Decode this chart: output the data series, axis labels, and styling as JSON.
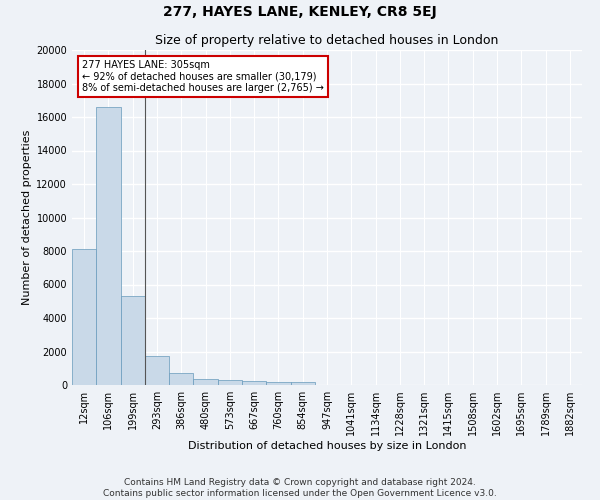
{
  "title": "277, HAYES LANE, KENLEY, CR8 5EJ",
  "subtitle": "Size of property relative to detached houses in London",
  "xlabel": "Distribution of detached houses by size in London",
  "ylabel": "Number of detached properties",
  "bar_color": "#c9d9e8",
  "bar_edge_color": "#6699bb",
  "annotation_box_color": "#ffffff",
  "annotation_box_edge": "#cc0000",
  "vline_color": "#555555",
  "categories": [
    "12sqm",
    "106sqm",
    "199sqm",
    "293sqm",
    "386sqm",
    "480sqm",
    "573sqm",
    "667sqm",
    "760sqm",
    "854sqm",
    "947sqm",
    "1041sqm",
    "1134sqm",
    "1228sqm",
    "1321sqm",
    "1415sqm",
    "1508sqm",
    "1602sqm",
    "1695sqm",
    "1789sqm",
    "1882sqm"
  ],
  "values": [
    8100,
    16600,
    5300,
    1750,
    730,
    380,
    290,
    220,
    190,
    170,
    0,
    0,
    0,
    0,
    0,
    0,
    0,
    0,
    0,
    0,
    0
  ],
  "ylim": [
    0,
    20000
  ],
  "yticks": [
    0,
    2000,
    4000,
    6000,
    8000,
    10000,
    12000,
    14000,
    16000,
    18000,
    20000
  ],
  "property_size": "305sqm",
  "property_name": "277 HAYES LANE",
  "pct_smaller": "92%",
  "n_smaller": "30,179",
  "pct_larger": "8%",
  "n_larger": "2,765",
  "vline_pos": 2.5,
  "footer_line1": "Contains HM Land Registry data © Crown copyright and database right 2024.",
  "footer_line2": "Contains public sector information licensed under the Open Government Licence v3.0.",
  "background_color": "#eef2f7",
  "plot_bg_color": "#eef2f7",
  "grid_color": "#ffffff",
  "title_fontsize": 10,
  "subtitle_fontsize": 9,
  "label_fontsize": 8,
  "tick_fontsize": 7,
  "annot_fontsize": 7,
  "footer_fontsize": 6.5
}
